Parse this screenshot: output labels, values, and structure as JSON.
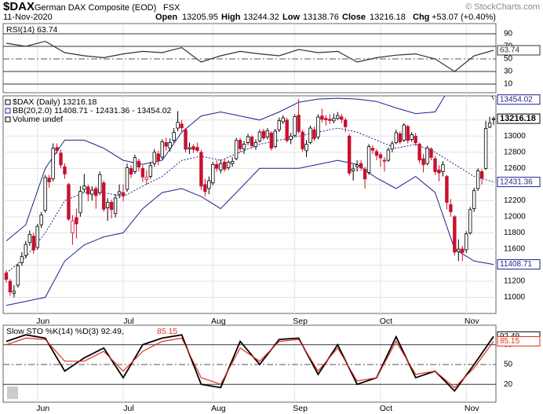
{
  "header": {
    "symbol": "$DAX",
    "name": "German DAX Composite (EOD)",
    "exchange": "FSX",
    "date": "11-Nov-2020",
    "open_label": "Open",
    "open": "13205.95",
    "high_label": "High",
    "high": "13244.32",
    "low_label": "Low",
    "low": "13138.76",
    "close_label": "Close",
    "close": "13216.18",
    "chg_label": "Chg",
    "chg": "+53.07 (+0.40%)",
    "credit": "© StockCharts.com"
  },
  "chart_data": [
    {
      "type": "line",
      "legend": "RSI(14) 63.74",
      "ylim": [
        0,
        100
      ],
      "yticks": [
        10,
        30,
        50,
        70,
        90
      ],
      "x": [
        0,
        5,
        10,
        15,
        20,
        25,
        30,
        35,
        40,
        45,
        50,
        55,
        60,
        65,
        70,
        75,
        80,
        85,
        90,
        95,
        100,
        105,
        110,
        115,
        120,
        125
      ],
      "series": [
        {
          "name": "RSI(14)",
          "color": "#333333",
          "values": [
            75,
            70,
            78,
            60,
            55,
            52,
            58,
            62,
            60,
            68,
            45,
            55,
            62,
            58,
            55,
            65,
            60,
            62,
            45,
            52,
            56,
            58,
            50,
            30,
            55,
            63.74
          ]
        }
      ]
    },
    {
      "type": "candlestick",
      "legend": [
        "$DAX (Daily) 13216.18",
        "BB(20,2.0) 11408.71 - 12431.36 - 13454.02",
        "Volume undef"
      ],
      "xlim": [
        -0.8,
        125.6
      ],
      "ylim": [
        10800,
        13500
      ],
      "yticks": [
        11000,
        11200,
        11400,
        11600,
        11800,
        12000,
        12200,
        12400,
        12600,
        12800,
        13000,
        13200
      ],
      "xticks": [
        {
          "value": 8,
          "label": "Jun"
        },
        {
          "value": 30,
          "label": "Jul"
        },
        {
          "value": 53,
          "label": "Aug"
        },
        {
          "value": 74,
          "label": "Sep"
        },
        {
          "value": 96,
          "label": "Oct"
        },
        {
          "value": 118,
          "label": "Nov"
        }
      ],
      "grid": true,
      "open": [
        11300,
        11200,
        11050,
        11150,
        11430,
        11520,
        11680,
        11760,
        11620,
        11900,
        12080,
        12480,
        12470,
        12860,
        12790,
        12620,
        12400,
        11800,
        11990,
        12050,
        12340,
        12370,
        12280,
        12350,
        12300,
        12420,
        12110,
        12180,
        12040,
        12280,
        12300,
        12340,
        12600,
        12560,
        12690,
        12600,
        12460,
        12500,
        12660,
        12780,
        12740,
        12920,
        12850,
        12950,
        13100,
        13150,
        13080,
        12840,
        12870,
        12860,
        12800,
        12400,
        12350,
        12420,
        12650,
        12580,
        12680,
        12610,
        12660,
        12720,
        12950,
        12840,
        12920,
        12990,
        12870,
        12940,
        13060,
        12990,
        13040,
        12870,
        13080,
        13180,
        13200,
        12960,
        13010,
        13260,
        13050,
        12820,
        12920,
        13080,
        12990,
        13250,
        13220,
        13210,
        13190,
        13220,
        13240,
        13200,
        13000,
        12570,
        12620,
        12660,
        12590,
        12550,
        12850,
        12810,
        12770,
        12700,
        12700,
        12840,
        12920,
        13030,
        12950,
        13120,
        12960,
        13000,
        12900,
        12720,
        12660,
        12840,
        12720,
        12580,
        12560,
        12500,
        12150,
        12000,
        11570,
        11600,
        11590,
        11800,
        12100,
        12350,
        12560,
        12600,
        13110,
        13205.95
      ],
      "high": [
        11340,
        11230,
        11150,
        11420,
        11560,
        11700,
        11830,
        11800,
        11910,
        12060,
        12520,
        12520,
        12910,
        12910,
        12830,
        12660,
        12420,
        12020,
        12100,
        12380,
        12530,
        12400,
        12380,
        12380,
        12560,
        12450,
        12230,
        12210,
        12280,
        12400,
        12400,
        12660,
        12640,
        12770,
        12720,
        12640,
        12580,
        12680,
        12840,
        12820,
        12960,
        12980,
        12970,
        13100,
        13310,
        13200,
        13100,
        12920,
        12900,
        12920,
        12830,
        12470,
        12500,
        12680,
        12700,
        12710,
        12720,
        12700,
        12740,
        12980,
        12980,
        12940,
        13030,
        13010,
        12960,
        13080,
        13090,
        13100,
        13060,
        13090,
        13230,
        13260,
        13230,
        13040,
        13270,
        13460,
        13080,
        12950,
        13130,
        13120,
        13270,
        13340,
        13260,
        13270,
        13280,
        13300,
        13280,
        13230,
        13030,
        12650,
        12700,
        12700,
        12620,
        12900,
        12890,
        12840,
        12800,
        12740,
        12860,
        12940,
        13080,
        13060,
        13160,
        13140,
        13050,
        13040,
        12920,
        12780,
        12880,
        12860,
        12750,
        12640,
        12690,
        12520,
        12220,
        12020,
        11720,
        11640,
        11820,
        12120,
        12360,
        12600,
        12590,
        13190,
        13240,
        13244.32
      ],
      "low": [
        11180,
        11020,
        11000,
        11120,
        11390,
        11480,
        11640,
        11540,
        11590,
        11860,
        12050,
        12360,
        12440,
        12780,
        12600,
        12470,
        11950,
        11650,
        11730,
        12000,
        12300,
        12190,
        12200,
        12100,
        12270,
        12060,
        11950,
        11980,
        11990,
        12230,
        12190,
        12310,
        12480,
        12530,
        12560,
        12430,
        12400,
        12470,
        12620,
        12640,
        12710,
        12820,
        12810,
        12920,
        13060,
        13060,
        12800,
        12780,
        12790,
        12800,
        12330,
        12250,
        12280,
        12390,
        12560,
        12540,
        12560,
        12580,
        12620,
        12700,
        12800,
        12780,
        12890,
        12850,
        12830,
        12920,
        12950,
        12960,
        12820,
        12850,
        13050,
        13150,
        12920,
        12900,
        12990,
        13030,
        12810,
        12740,
        12900,
        12940,
        12960,
        13170,
        13130,
        13150,
        13160,
        13200,
        13160,
        13050,
        12510,
        12450,
        12560,
        12570,
        12350,
        12520,
        12780,
        12700,
        12620,
        12560,
        12680,
        12800,
        12900,
        12900,
        12930,
        12910,
        12930,
        12880,
        12660,
        12550,
        12640,
        12700,
        12520,
        12440,
        12500,
        12090,
        12000,
        11520,
        11450,
        11450,
        11550,
        11780,
        12060,
        12320,
        12400,
        12580,
        13100,
        13138.76
      ],
      "close": [
        11223,
        11066,
        11074,
        11392,
        11505,
        11657,
        11781,
        11587,
        11880,
        12021,
        12487,
        12431,
        12848,
        12820,
        12642,
        12530,
        11970,
        11949,
        11911,
        12315,
        12382,
        12281,
        12331,
        12262,
        12523,
        12093,
        12177,
        12089,
        12232,
        12311,
        12260,
        12608,
        12528,
        12733,
        12617,
        12494,
        12489,
        12634,
        12800,
        12697,
        12930,
        12874,
        12920,
        13046,
        13171,
        13104,
        12838,
        12856,
        12835,
        12822,
        12379,
        12313,
        12447,
        12647,
        12600,
        12660,
        12591,
        12674,
        12687,
        12946,
        12843,
        12901,
        12994,
        12881,
        12920,
        13050,
        12977,
        13066,
        12850,
        13062,
        13191,
        13226,
        12945,
        13000,
        13243,
        13057,
        12842,
        12900,
        13100,
        12968,
        13237,
        13209,
        13202,
        13194,
        13218,
        13255,
        13208,
        13116,
        12542,
        12594,
        12643,
        12606,
        12469,
        12870,
        12825,
        12761,
        12730,
        12689,
        12828,
        12906,
        13042,
        12928,
        13138,
        12946,
        13018,
        12918,
        12703,
        12645,
        12854,
        12736,
        12558,
        12543,
        12645,
        12177,
        12063,
        11560,
        11598,
        11556,
        11788,
        12088,
        12324,
        12568,
        12480,
        13096,
        13164,
        13216.18
      ],
      "bands": {
        "color": "#1f1f8f",
        "x": [
          0,
          5,
          10,
          15,
          20,
          25,
          30,
          35,
          40,
          45,
          50,
          55,
          60,
          65,
          70,
          75,
          80,
          85,
          90,
          95,
          100,
          105,
          110,
          115,
          120,
          125
        ],
        "upper": [
          11700,
          11900,
          12600,
          12950,
          12950,
          12850,
          12700,
          12650,
          12700,
          13050,
          13250,
          13300,
          13250,
          13200,
          13300,
          13420,
          13460,
          13470,
          13460,
          13430,
          13350,
          13280,
          13300,
          13700,
          13950,
          13454.02
        ],
        "middle": [
          11300,
          11500,
          11800,
          12200,
          12300,
          12300,
          12250,
          12380,
          12500,
          12700,
          12750,
          12700,
          12800,
          12900,
          12950,
          13000,
          13050,
          13100,
          13050,
          12950,
          12850,
          12900,
          12800,
          12650,
          12500,
          12431.36
        ],
        "lower": [
          10900,
          10950,
          11000,
          11450,
          11650,
          11750,
          11800,
          12100,
          12300,
          12350,
          12250,
          12100,
          12350,
          12600,
          12600,
          12600,
          12650,
          12700,
          12650,
          12480,
          12350,
          12500,
          12300,
          11600,
          11450,
          11408.71
        ]
      }
    },
    {
      "type": "line",
      "legend": "Slow STO %K(14) %D(3) 92.49,",
      "legend_value": "85.15",
      "ylim": [
        0,
        100
      ],
      "yticks": [
        20,
        50,
        80
      ],
      "x": [
        0,
        5,
        10,
        15,
        20,
        25,
        30,
        35,
        40,
        45,
        50,
        55,
        60,
        65,
        70,
        75,
        80,
        85,
        90,
        95,
        100,
        105,
        110,
        115,
        120,
        125
      ],
      "series": [
        {
          "name": "%K(14)",
          "color": "#000000",
          "values": [
            85,
            95,
            90,
            40,
            60,
            75,
            30,
            80,
            90,
            95,
            20,
            15,
            85,
            50,
            88,
            90,
            35,
            80,
            20,
            30,
            92,
            30,
            40,
            10,
            50,
            92.49
          ]
        },
        {
          "name": "%D(3)",
          "color": "#e0301e",
          "values": [
            80,
            90,
            88,
            55,
            55,
            70,
            40,
            70,
            85,
            90,
            30,
            20,
            75,
            55,
            85,
            88,
            40,
            75,
            25,
            30,
            85,
            35,
            40,
            15,
            45,
            85.15
          ]
        }
      ]
    }
  ]
}
